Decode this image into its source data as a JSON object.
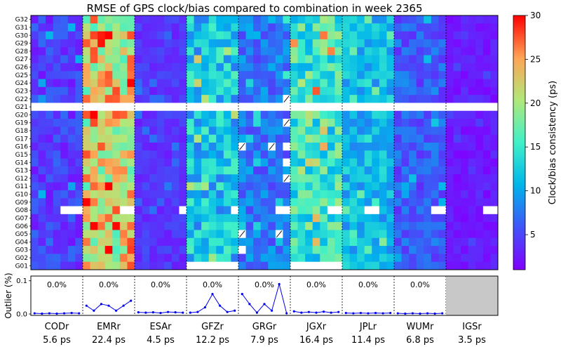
{
  "chart_data": {
    "type": "heatmap",
    "title": "RMSE of GPS clock/bias compared to combination in week 2365",
    "ylabels": [
      "G32",
      "G31",
      "G30",
      "G29",
      "G28",
      "G27",
      "G26",
      "G25",
      "G24",
      "G23",
      "G22",
      "G21",
      "G20",
      "G19",
      "G18",
      "G17",
      "G16",
      "G15",
      "G14",
      "G13",
      "G12",
      "G11",
      "G10",
      "G09",
      "G08",
      "G07",
      "G06",
      "G05",
      "G04",
      "G03",
      "G02",
      "G01"
    ],
    "centers": [
      "CODr",
      "EMRr",
      "ESAr",
      "GFZr",
      "GRGr",
      "JGXr",
      "JPLr",
      "WUMr",
      "IGSr"
    ],
    "rms": [
      "5.6 ps",
      "22.4 ps",
      "4.5 ps",
      "12.2 ps",
      "7.9 ps",
      "16.4 ps",
      "11.4 ps",
      "6.8 ps",
      "3.5 ps"
    ],
    "outlier_pct_labels": [
      "0.0%",
      "0.0%",
      "0.0%",
      "0.0%",
      "0.0%",
      "0.0%",
      "0.0%",
      "0.0%",
      ""
    ],
    "outlier_series": [
      [
        0.002,
        0.001,
        0.002,
        0.001,
        0.002,
        0.003,
        0.002
      ],
      [
        0.025,
        0.01,
        0.03,
        0.025,
        0.01,
        0.025,
        0.04
      ],
      [
        0.005,
        0.004,
        0.005,
        0.003,
        0.006,
        0.005,
        0.004
      ],
      [
        0.004,
        0.006,
        0.02,
        0.06,
        0.025,
        0.006,
        0.01
      ],
      [
        0.06,
        0.03,
        0.004,
        0.03,
        0.01,
        0.09,
        0.002
      ],
      [
        0.008,
        0.004,
        0.006,
        0.004,
        0.007,
        0.004,
        0.006
      ],
      [
        0.003,
        0.002,
        0.003,
        0.002,
        0.003,
        0.002,
        0.003
      ],
      [
        0.002,
        0.001,
        0.002,
        0.001,
        0.002,
        0.001,
        0.002
      ]
    ],
    "outlier_ylabel": "Outlier (%)",
    "outlier_yticks": [
      "0.0",
      "0.1"
    ],
    "outlier_ylim": [
      0,
      0.11
    ],
    "colorbar_label": "Clock/bias consistency (ps)",
    "colorbar_ticks": [
      5,
      10,
      15,
      20,
      25,
      30
    ],
    "color_range": [
      1,
      30
    ],
    "base_levels": [
      4.5,
      22,
      4,
      12,
      7.5,
      15,
      11,
      6,
      2.5
    ],
    "cell_noise": [
      2.5,
      6,
      1.5,
      4.5,
      3,
      5,
      3,
      2.5,
      1.2
    ],
    "missing_rows": [
      "G21"
    ],
    "missing_cells": [
      {
        "center": "CODr",
        "sat": "G08",
        "cols": [
          4,
          5,
          6
        ]
      },
      {
        "center": "EMRr",
        "sat": "G08",
        "cols": [
          5,
          6
        ]
      },
      {
        "center": "ESAr",
        "sat": "G08",
        "cols": [
          6
        ]
      },
      {
        "center": "GFZr",
        "sat": "G08",
        "cols": [
          6
        ]
      },
      {
        "center": "GFZr",
        "sat": "G01",
        "cols": [
          0,
          1,
          2,
          3,
          4,
          5,
          6
        ]
      },
      {
        "center": "GRGr",
        "sat": "G08",
        "cols": [
          5,
          6
        ]
      },
      {
        "center": "GRGr",
        "sat": "G16",
        "cols": [
          6
        ]
      },
      {
        "center": "GRGr",
        "sat": "G14",
        "cols": [
          6
        ]
      },
      {
        "center": "GRGr",
        "sat": "G03",
        "cols": [
          0
        ]
      },
      {
        "center": "JGXr",
        "sat": "G08",
        "cols": [
          5,
          6
        ]
      },
      {
        "center": "JGXr",
        "sat": "G01",
        "cols": [
          0,
          1,
          2,
          3,
          4,
          5,
          6
        ]
      },
      {
        "center": "JPLr",
        "sat": "G08",
        "cols": [
          3,
          4
        ]
      },
      {
        "center": "WUMr",
        "sat": "G08",
        "cols": [
          5,
          6
        ]
      },
      {
        "center": "IGSr",
        "sat": "G08",
        "cols": [
          5,
          6
        ]
      }
    ],
    "hatched_cells": [
      {
        "center": "GRGr",
        "sat": "G22",
        "cols": [
          6
        ]
      },
      {
        "center": "GRGr",
        "sat": "G19",
        "cols": [
          6
        ]
      },
      {
        "center": "GRGr",
        "sat": "G16",
        "cols": [
          0,
          4
        ]
      },
      {
        "center": "GRGr",
        "sat": "G12",
        "cols": [
          6
        ]
      },
      {
        "center": "GRGr",
        "sat": "G05",
        "cols": [
          0,
          5
        ]
      }
    ],
    "no_outlier_panel": [
      "IGSr"
    ]
  }
}
